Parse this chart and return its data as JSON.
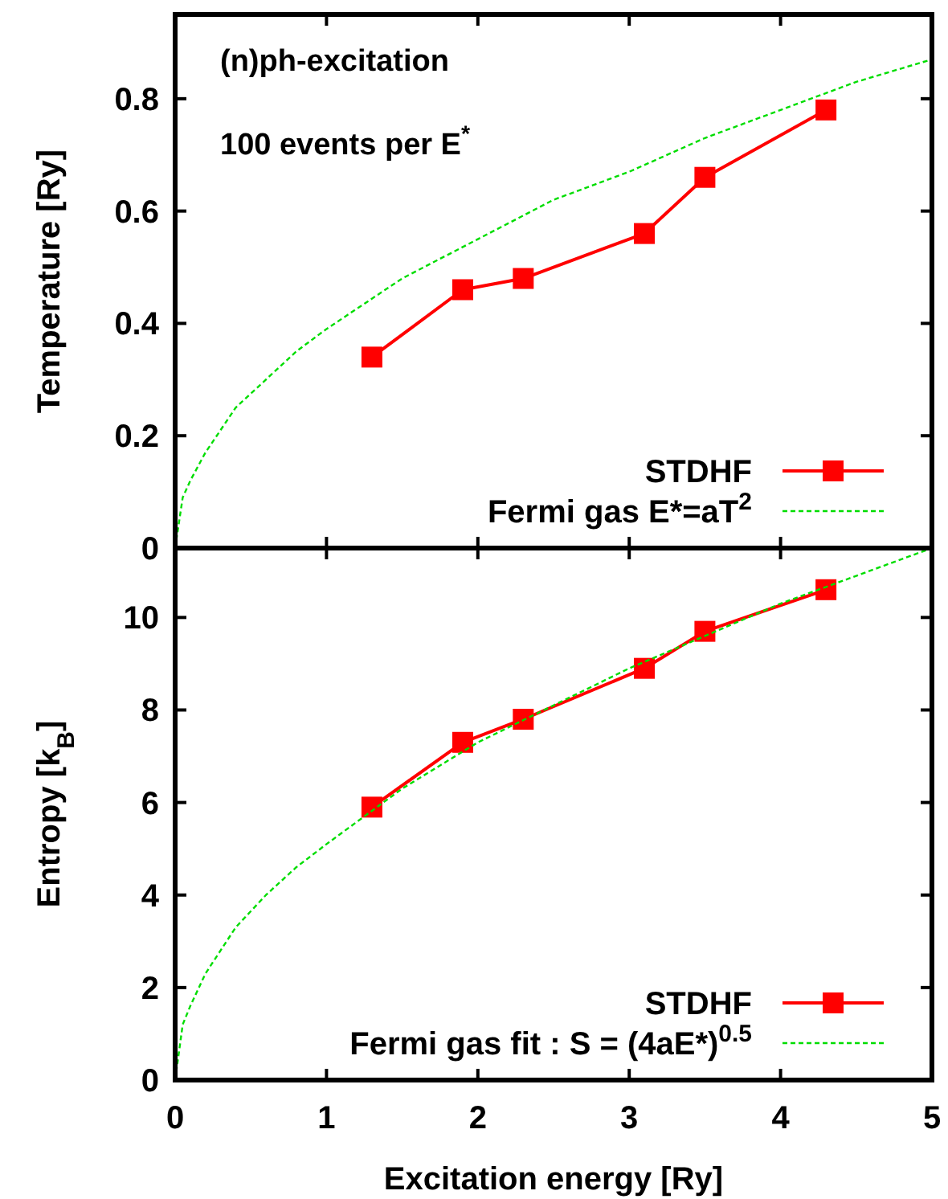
{
  "chart_data": [
    {
      "type": "line",
      "ylabel": "Temperature [Ry]",
      "annotations": [
        "(n)ph-excitation",
        "100 events per E$^{*}$"
      ],
      "xlim": [
        0,
        5
      ],
      "xticks": [
        0,
        1,
        2,
        3,
        4,
        5
      ],
      "ylim": [
        0,
        0.95
      ],
      "yticks": [
        0,
        0.2,
        0.4,
        0.6,
        0.8
      ],
      "tick_labels": "y",
      "legend": "bottom right",
      "series": [
        {
          "name": "STDHF",
          "color": "#ff0000",
          "marker": "square",
          "line_style": "solid",
          "x": [
            1.3,
            1.9,
            2.3,
            3.1,
            3.5,
            4.3
          ],
          "values": [
            0.34,
            0.46,
            0.48,
            0.56,
            0.66,
            0.78
          ]
        },
        {
          "name": "Fermi gas E*=aT$^{2}$",
          "color": "#00dd00",
          "marker": "none",
          "line_style": "dashed",
          "x": [
            0,
            0.05,
            0.1,
            0.2,
            0.4,
            0.6,
            0.8,
            1,
            1.5,
            2,
            2.5,
            3,
            3.5,
            4,
            4.5,
            5
          ],
          "values": [
            0,
            0.09,
            0.12,
            0.17,
            0.25,
            0.3,
            0.35,
            0.39,
            0.48,
            0.55,
            0.62,
            0.67,
            0.73,
            0.78,
            0.83,
            0.87
          ]
        }
      ]
    },
    {
      "type": "line",
      "xlabel": "Excitation energy [Ry]",
      "ylabel": "Entropy [k$_{B}$]",
      "xlim": [
        0,
        5
      ],
      "xticks": [
        0,
        1,
        2,
        3,
        4,
        5
      ],
      "ylim": [
        0,
        11.5
      ],
      "yticks": [
        0,
        2,
        4,
        6,
        8,
        10
      ],
      "legend": "bottom right",
      "series": [
        {
          "name": "STDHF",
          "color": "#ff0000",
          "marker": "square",
          "line_style": "solid",
          "x": [
            1.3,
            1.9,
            2.3,
            3.1,
            3.5,
            4.3
          ],
          "values": [
            5.9,
            7.3,
            7.8,
            8.9,
            9.7,
            10.6
          ]
        },
        {
          "name": "Fermi gas fit : S = (4aE*)$^{0.5}$",
          "color": "#00dd00",
          "marker": "none",
          "line_style": "dashed",
          "x": [
            0,
            0.05,
            0.1,
            0.2,
            0.4,
            0.6,
            0.8,
            1,
            1.5,
            2,
            2.5,
            3,
            3.5,
            4,
            4.5,
            5
          ],
          "values": [
            0,
            1.2,
            1.6,
            2.3,
            3.3,
            4,
            4.6,
            5.1,
            6.3,
            7.3,
            8.1,
            8.9,
            9.6,
            10.3,
            10.9,
            11.5
          ]
        }
      ]
    }
  ]
}
